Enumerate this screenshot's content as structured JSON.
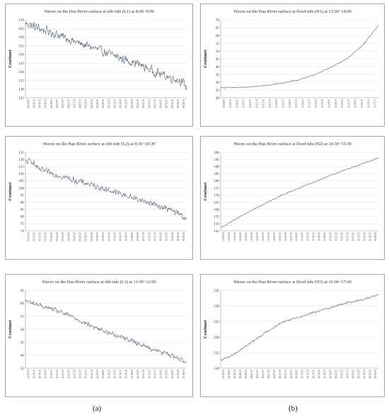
{
  "captions": {
    "left": "(a)",
    "right": "(b)"
  },
  "chart_data": [
    {
      "type": "line",
      "title": "Waves on the Hau River surface at ebb tide (L1) at 8:00−9:00",
      "ylabel": "Centimet",
      "xlabel": "",
      "ylim": [
        125,
        170
      ],
      "yticks": [
        125,
        130,
        135,
        140,
        145,
        150,
        155,
        160,
        165,
        170
      ],
      "xticks": [
        "08:00:05",
        "08:02:15",
        "08:04:25",
        "08:06:35",
        "08:08:45",
        "08:10:55",
        "08:13:05",
        "08:15:15",
        "08:17:25",
        "08:19:35",
        "08:21:45",
        "08:23:55",
        "08:26:05",
        "08:28:15",
        "08:30:25",
        "08:32:35",
        "08:34:45",
        "08:36:55",
        "08:39:05",
        "08:41:15",
        "08:43:25",
        "08:45:35",
        "08:47:45",
        "08:49:55",
        "08:52:05",
        "08:54:15",
        "08:56:25",
        "08:58:35"
      ],
      "grid": true,
      "series": [
        {
          "color": "#44546a",
          "anchors": [
            [
              0,
              168
            ],
            [
              0.1,
              164.5
            ],
            [
              0.2,
              161.5
            ],
            [
              0.3,
              157.5
            ],
            [
              0.4,
              154.5
            ],
            [
              0.5,
              151
            ],
            [
              0.6,
              147.5
            ],
            [
              0.7,
              144.5
            ],
            [
              0.8,
              140
            ],
            [
              0.9,
              136.5
            ],
            [
              0.96,
              135
            ],
            [
              1.0,
              131
            ]
          ],
          "noise": 3.2,
          "points": 360
        }
      ]
    },
    {
      "type": "line",
      "title": "Waves on the Hau River surface at flood tide (H1) at 13:00−14:00",
      "ylabel": "Centimet",
      "xlabel": "",
      "ylim": [
        20,
        70
      ],
      "yticks": [
        20,
        25,
        30,
        35,
        40,
        45,
        50,
        55,
        60,
        65,
        70
      ],
      "xticks": [
        "13:00:05",
        "13:02:35",
        "13:05:05",
        "13:07:35",
        "13:10:05",
        "13:12:35",
        "13:15:05",
        "13:17:35",
        "13:20:05",
        "13:22:35",
        "13:25:05",
        "13:27:35",
        "13:30:05",
        "13:32:35",
        "13:35:05",
        "13:37:35",
        "13:40:05",
        "13:42:35",
        "13:45:05",
        "13:47:35",
        "13:50:05",
        "13:52:35",
        "13:55:05",
        "13:57:35"
      ],
      "grid": true,
      "series": [
        {
          "color": "#44546a",
          "anchors": [
            [
              0,
              26.5
            ],
            [
              0.1,
              26.5
            ],
            [
              0.2,
              27
            ],
            [
              0.3,
              28
            ],
            [
              0.4,
              29.5
            ],
            [
              0.5,
              31.5
            ],
            [
              0.6,
              35
            ],
            [
              0.7,
              39.5
            ],
            [
              0.8,
              45
            ],
            [
              0.9,
              53.5
            ],
            [
              1.0,
              66.5
            ]
          ],
          "noise": 0.4,
          "points": 360
        }
      ]
    },
    {
      "type": "line",
      "title": "Waves on the Hau River surface at ebb tide (L2) at 9:30−10:30",
      "ylabel": "Centimet",
      "xlabel": "",
      "ylim": [
        70,
        125
      ],
      "yticks": [
        70,
        75,
        80,
        85,
        90,
        95,
        100,
        105,
        110,
        115,
        120,
        125
      ],
      "xticks": [
        "09:30:05",
        "09:32:05",
        "09:34:15",
        "09:36:25",
        "09:38:35",
        "09:40:45",
        "09:42:55",
        "09:45:05",
        "09:47:15",
        "09:49:25",
        "09:51:35",
        "09:53:45",
        "09:55:55",
        "09:58:05",
        "10:00:15",
        "10:02:25",
        "10:04:35",
        "10:06:45",
        "10:08:55",
        "10:11:05",
        "10:13:15",
        "10:15:25",
        "10:17:35",
        "10:19:45",
        "10:21:55",
        "10:24:05",
        "10:26:15",
        "10:28:25"
      ],
      "grid": true,
      "series": [
        {
          "color": "#44546a",
          "anchors": [
            [
              0,
              118
            ],
            [
              0.04,
              119
            ],
            [
              0.08,
              113
            ],
            [
              0.2,
              109
            ],
            [
              0.3,
              105.5
            ],
            [
              0.4,
              102.5
            ],
            [
              0.5,
              99
            ],
            [
              0.6,
              95.5
            ],
            [
              0.7,
              92
            ],
            [
              0.8,
              88.5
            ],
            [
              0.9,
              84.5
            ],
            [
              0.97,
              81
            ],
            [
              1.0,
              77.5
            ]
          ],
          "noise": 2.6,
          "points": 360
        }
      ]
    },
    {
      "type": "line",
      "title": "Waves on the Hau River surface at flood tide (H2) at 14:30−15:30",
      "ylabel": "Centimet",
      "xlabel": "",
      "ylim": [
        145,
        200
      ],
      "yticks": [
        145,
        150,
        155,
        160,
        165,
        170,
        175,
        180,
        185,
        190,
        195,
        200
      ],
      "xticks": [
        "14:29:55",
        "14:32:05",
        "14:34:15",
        "14:36:25",
        "14:38:35",
        "14:40:45",
        "14:42:55",
        "14:45:05",
        "14:47:15",
        "14:49:25",
        "14:51:35",
        "14:53:45",
        "14:55:55",
        "14:58:05",
        "15:00:15",
        "15:02:25",
        "15:04:35",
        "15:06:45",
        "15:08:55",
        "15:11:05",
        "15:13:15",
        "15:15:25",
        "15:17:35",
        "15:19:45",
        "15:21:55",
        "15:24:05",
        "15:26:15",
        "15:28:25"
      ],
      "grid": true,
      "series": [
        {
          "color": "#44546a",
          "anchors": [
            [
              0,
              147
            ],
            [
              0.1,
              153.5
            ],
            [
              0.2,
              159.5
            ],
            [
              0.3,
              165
            ],
            [
              0.4,
              170.5
            ],
            [
              0.5,
              175
            ],
            [
              0.6,
              179.5
            ],
            [
              0.7,
              184
            ],
            [
              0.8,
              188
            ],
            [
              0.9,
              192
            ],
            [
              1.0,
              196
            ]
          ],
          "noise": 0.45,
          "points": 360
        }
      ]
    },
    {
      "type": "line",
      "title": "Waves on the Hau River surface at ebb tide (L3) at 11:00−12:00",
      "ylabel": "Centimet",
      "xlabel": "",
      "ylim": [
        35,
        65
      ],
      "yticks": [
        35,
        40,
        45,
        50,
        55,
        60,
        65
      ],
      "xticks": [
        "10:59:55",
        "11:02:05",
        "11:04:15",
        "11:06:25",
        "11:08:35",
        "11:10:45",
        "11:12:55",
        "11:15:05",
        "11:17:15",
        "11:19:25",
        "11:21:35",
        "11:23:45",
        "11:25:55",
        "11:28:05",
        "11:30:15",
        "11:32:25",
        "11:34:35",
        "11:36:45",
        "11:38:55",
        "11:41:05",
        "11:43:15",
        "11:45:25",
        "11:47:35",
        "11:49:45",
        "11:51:55",
        "11:54:05",
        "11:56:15",
        "11:58:25"
      ],
      "grid": true,
      "series": [
        {
          "color": "#44546a",
          "anchors": [
            [
              0,
              61
            ],
            [
              0.1,
              59
            ],
            [
              0.2,
              57
            ],
            [
              0.3,
              54.5
            ],
            [
              0.4,
              51.5
            ],
            [
              0.5,
              49
            ],
            [
              0.6,
              47
            ],
            [
              0.7,
              44.5
            ],
            [
              0.8,
              42
            ],
            [
              0.9,
              40
            ],
            [
              1.0,
              37.5
            ]
          ],
          "noise": 1.1,
          "points": 360
        }
      ]
    },
    {
      "type": "line",
      "title": "Waves on the Hau River surface at flood tide (H3) at 16:00−17:00",
      "ylabel": "Centimet",
      "xlabel": "",
      "ylim": [
        210,
        235
      ],
      "yticks": [
        210,
        215,
        220,
        225,
        230,
        235
      ],
      "xticks": [
        "15:59:55",
        "16:02:05",
        "16:04:15",
        "16:06:25",
        "16:08:35",
        "16:10:45",
        "16:12:55",
        "16:15:05",
        "16:17:15",
        "16:19:25",
        "16:21:35",
        "16:23:45",
        "16:25:55",
        "16:28:05",
        "16:30:15",
        "16:32:25",
        "16:34:35",
        "16:36:45",
        "16:38:55",
        "16:41:05",
        "16:43:15",
        "16:45:25",
        "16:47:35",
        "16:49:45",
        "16:51:55",
        "16:54:05",
        "16:56:15",
        "16:58:25"
      ],
      "grid": true,
      "series": [
        {
          "color": "#44546a",
          "anchors": [
            [
              0,
              212.5
            ],
            [
              0.05,
              213.5
            ],
            [
              0.1,
              215
            ],
            [
              0.2,
              218.5
            ],
            [
              0.3,
              222
            ],
            [
              0.4,
              225
            ],
            [
              0.5,
              226.5
            ],
            [
              0.6,
              228
            ],
            [
              0.7,
              229.5
            ],
            [
              0.8,
              231
            ],
            [
              0.9,
              232
            ],
            [
              1.0,
              233.5
            ]
          ],
          "noise": 0.4,
          "points": 360
        }
      ]
    }
  ]
}
